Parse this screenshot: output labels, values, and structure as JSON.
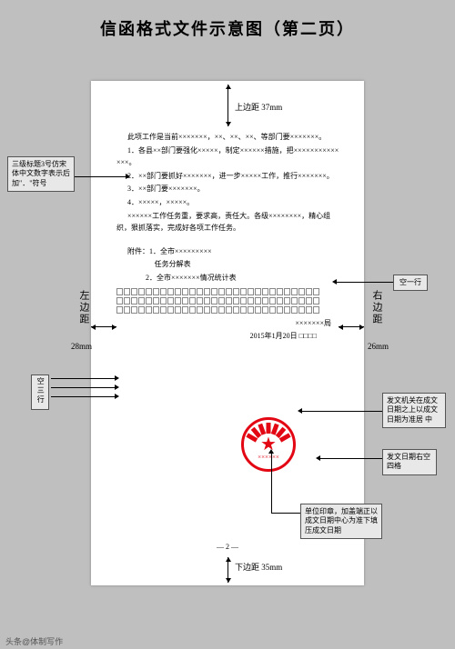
{
  "title": "信函格式文件示意图（第二页）",
  "margins": {
    "top": "上边距 37mm",
    "bottom": "下边距 35mm",
    "left_label": "左边距",
    "left_val": "28mm",
    "right_label": "右边距",
    "right_val": "26mm"
  },
  "body": {
    "p0": "此项工作是当前×××××××，××、××、××、等部门要×××××××。",
    "p1": "1．各县××部门要强化×××××，制定××××××措施，把××××××××××××××。",
    "p2": "2．××部门要抓好×××××××，进一步×××××工作，推行×××××××。",
    "p3": "3．××部门要×××××××。",
    "p4": "4．×××××，×××××。",
    "p5": "××××××工作任务重，要求高，责任大。各级××××××××，精心组织，狠抓落实，完成好各项工作任务。",
    "att_label": "附件：1．全市×××××××××",
    "att2": "任务分解表",
    "att3": "2．全市×××××××情况统计表",
    "sig": "×××××××局",
    "date": "2015年1月20日",
    "pagenum": "— 2 —"
  },
  "callouts": {
    "c1": "三级标题3号仿宋体中文数字表示后加\"．\"符号",
    "c2": "空一行",
    "c3": "空三行",
    "c4": "发文机关在成文日期之上以成文日期为准居    中",
    "c5": "发文日期右空四格",
    "c6": "单位印章，加盖端正以成文日期中心为准下填压成文日期"
  },
  "seal": {
    "text": "××××××"
  },
  "watermark": "头条@体制写作",
  "colors": {
    "seal": "#e30613",
    "page_bg": "#ffffff",
    "stage_bg": "#bfbfbf"
  }
}
